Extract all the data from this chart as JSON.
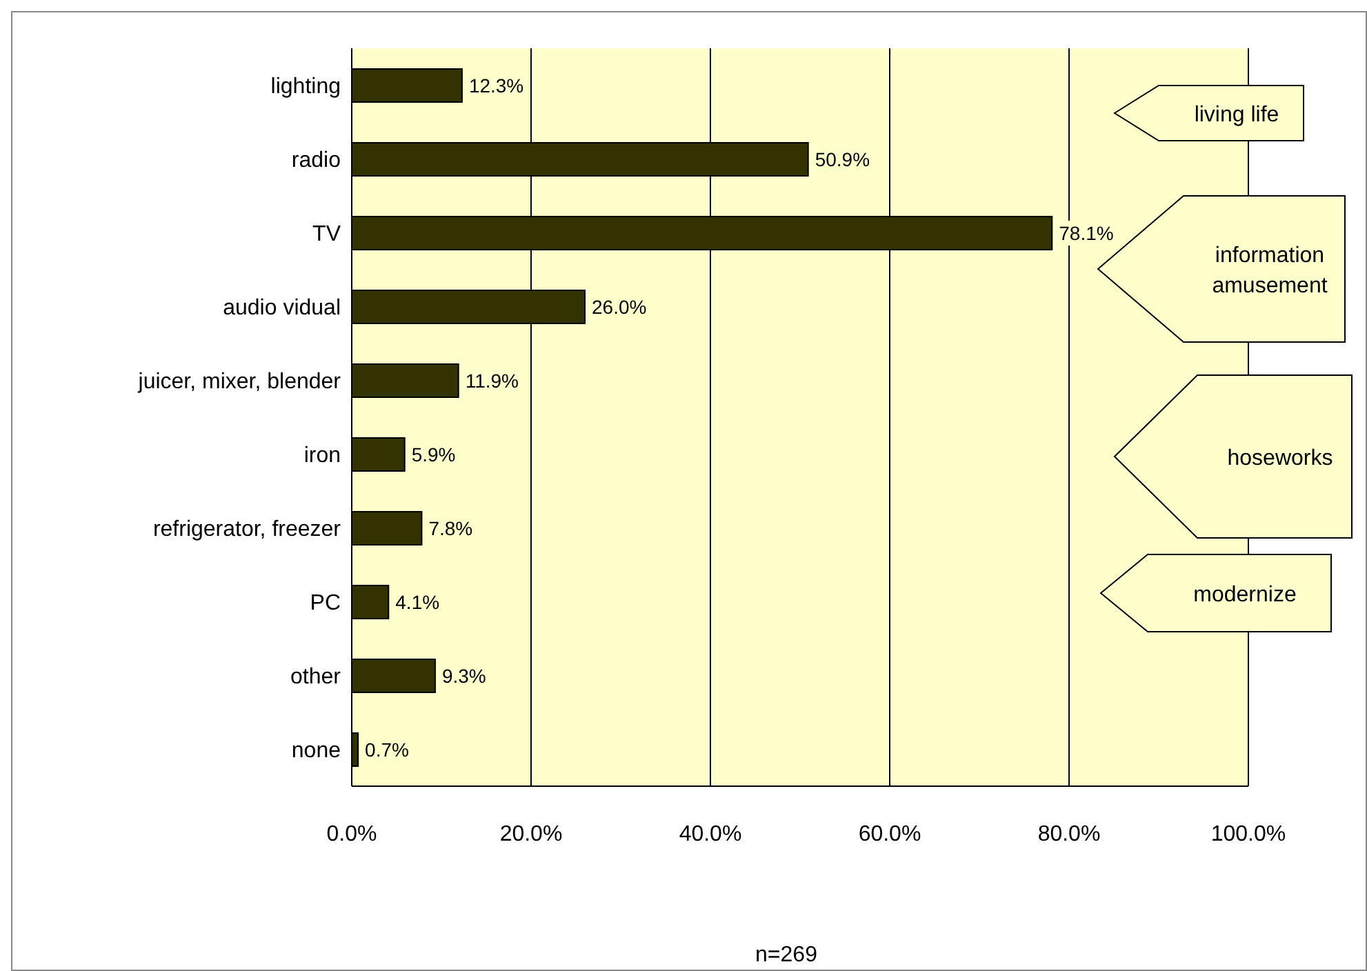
{
  "chart_data": {
    "type": "bar",
    "orientation": "horizontal",
    "categories": [
      "lighting",
      "radio",
      "TV",
      "audio vidual",
      "juicer, mixer, blender",
      "iron",
      "refrigerator, freezer",
      "PC",
      "other",
      "none"
    ],
    "values": [
      12.3,
      50.9,
      78.1,
      26.0,
      11.9,
      5.9,
      7.8,
      4.1,
      9.3,
      0.7
    ],
    "value_labels": [
      "12.3%",
      "50.9%",
      "78.1%",
      "26.0%",
      "11.9%",
      "5.9%",
      "7.8%",
      "4.1%",
      "9.3%",
      "0.7%"
    ],
    "color": "#333300",
    "xlim": [
      0,
      100
    ],
    "xticks": [
      {
        "value": 0,
        "label": "0.0%"
      },
      {
        "value": 20,
        "label": "20.0%"
      },
      {
        "value": 40,
        "label": "40.0%"
      },
      {
        "value": 60,
        "label": "60.0%"
      },
      {
        "value": 80,
        "label": "80.0%"
      },
      {
        "value": 100,
        "label": "100.0%"
      }
    ],
    "grid": "x",
    "annotations": [
      "living life",
      "information\namusement",
      "hoseworks",
      "modernize",
      "n=269"
    ]
  }
}
